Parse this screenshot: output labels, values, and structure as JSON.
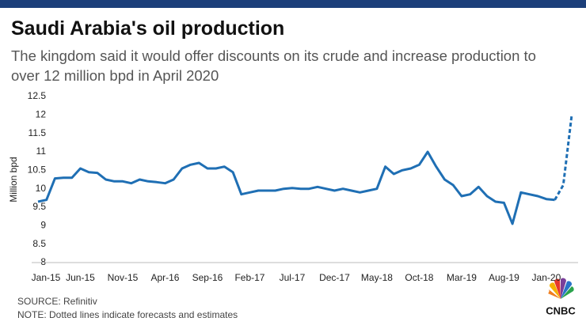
{
  "chart_data": {
    "type": "line",
    "title": "Saudi Arabia's oil production",
    "subtitle": "The kingdom said it would offer discounts on its crude and increase production to over 12 million bpd in April 2020",
    "y_label": "Million bpd",
    "source": "SOURCE: Refinitiv",
    "note": "NOTE: Dotted lines indicate forecasts and estimates",
    "logo": "CNBC",
    "categories": [
      "Jan-15",
      null,
      null,
      null,
      null,
      "Jun-15",
      null,
      null,
      null,
      null,
      "Nov-15",
      null,
      null,
      null,
      null,
      "Apr-16",
      null,
      null,
      null,
      null,
      "Sep-16",
      null,
      null,
      null,
      null,
      "Feb-17",
      null,
      null,
      null,
      null,
      "Jul-17",
      null,
      null,
      null,
      null,
      "Dec-17",
      null,
      null,
      null,
      null,
      "May-18",
      null,
      null,
      null,
      null,
      "Oct-18",
      null,
      null,
      null,
      null,
      "Mar-19",
      null,
      null,
      null,
      null,
      "Aug-19",
      null,
      null,
      null,
      null,
      "Jan-20",
      null,
      null,
      null
    ],
    "series": [
      {
        "color": "#1f6fb4",
        "dashed": false,
        "values": [
          9.65,
          9.7,
          10.28,
          10.3,
          10.3,
          10.55,
          10.45,
          10.43,
          10.25,
          10.2,
          10.2,
          10.15,
          10.25,
          10.2,
          10.18,
          10.15,
          10.25,
          10.55,
          10.65,
          10.7,
          10.55,
          10.55,
          10.6,
          10.45,
          9.85,
          9.9,
          9.95,
          9.95,
          9.95,
          10.0,
          10.02,
          10.0,
          10.0,
          10.05,
          10.0,
          9.95,
          10.0,
          9.95,
          9.9,
          9.95,
          10.0,
          10.6,
          10.4,
          10.5,
          10.55,
          10.65,
          11.0,
          10.6,
          10.25,
          10.1,
          9.8,
          9.85,
          10.05,
          9.8,
          9.65,
          9.62,
          9.05,
          9.9,
          9.85,
          9.8,
          9.72,
          9.7,
          null,
          null
        ]
      },
      {
        "color": "#1f6fb4",
        "dashed": true,
        "values": [
          null,
          null,
          null,
          null,
          null,
          null,
          null,
          null,
          null,
          null,
          null,
          null,
          null,
          null,
          null,
          null,
          null,
          null,
          null,
          null,
          null,
          null,
          null,
          null,
          null,
          null,
          null,
          null,
          null,
          null,
          null,
          null,
          null,
          null,
          null,
          null,
          null,
          null,
          null,
          null,
          null,
          null,
          null,
          null,
          null,
          null,
          null,
          null,
          null,
          null,
          null,
          null,
          null,
          null,
          null,
          null,
          null,
          null,
          null,
          null,
          null,
          9.7,
          10.1,
          12.0
        ]
      }
    ],
    "ylim": [
      8,
      12.5
    ],
    "yticks": [
      8,
      8.5,
      9,
      9.5,
      10,
      10.5,
      11,
      11.5,
      12,
      12.5
    ],
    "grid": false
  }
}
